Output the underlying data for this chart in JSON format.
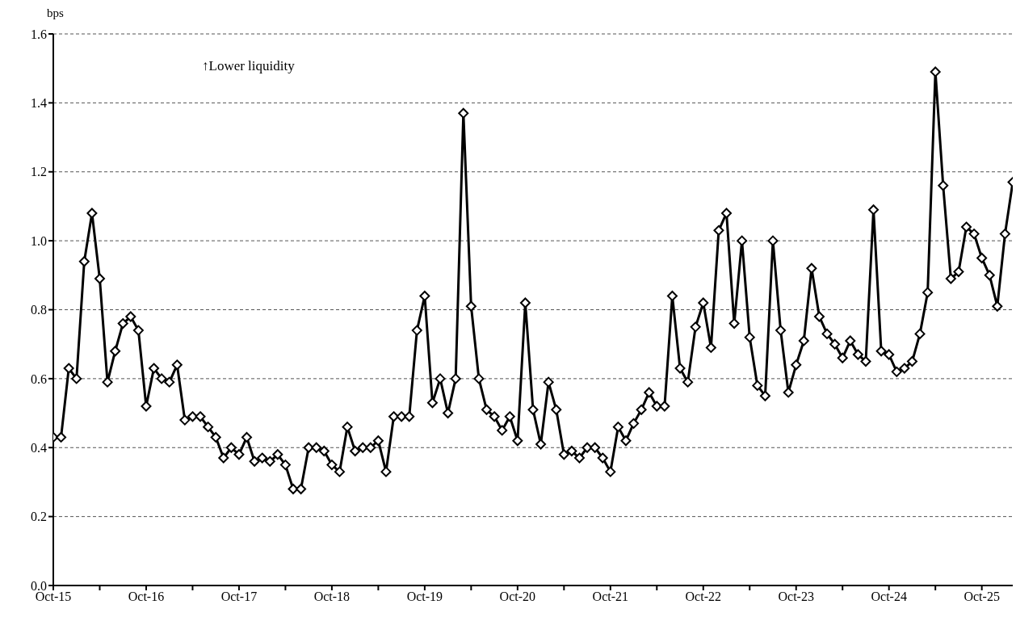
{
  "chart_data": {
    "type": "line",
    "ylabel": "bps",
    "annotations": [
      "↑Lower liquidity"
    ],
    "xlim": [
      "2015-10",
      "2026-02"
    ],
    "xticks": [
      {
        "value": "2015-10",
        "label": "Oct-15"
      },
      {
        "value": "2016-04",
        "label": null
      },
      {
        "value": "2016-10",
        "label": "Oct-16"
      },
      {
        "value": "2017-04",
        "label": null
      },
      {
        "value": "2017-10",
        "label": "Oct-17"
      },
      {
        "value": "2018-04",
        "label": null
      },
      {
        "value": "2018-10",
        "label": "Oct-18"
      },
      {
        "value": "2019-04",
        "label": null
      },
      {
        "value": "2019-10",
        "label": "Oct-19"
      },
      {
        "value": "2020-04",
        "label": null
      },
      {
        "value": "2020-10",
        "label": "Oct-20"
      },
      {
        "value": "2021-04",
        "label": null
      },
      {
        "value": "2021-10",
        "label": "Oct-21"
      },
      {
        "value": "2022-04",
        "label": null
      },
      {
        "value": "2022-10",
        "label": "Oct-22"
      },
      {
        "value": "2023-04",
        "label": null
      },
      {
        "value": "2023-10",
        "label": "Oct-23"
      },
      {
        "value": "2024-04",
        "label": null
      },
      {
        "value": "2024-10",
        "label": "Oct-24"
      },
      {
        "value": "2025-04",
        "label": null
      },
      {
        "value": "2025-10",
        "label": "Oct-25"
      }
    ],
    "ylim": [
      0,
      1.6
    ],
    "yticks": [
      {
        "value": 0,
        "label": "0.0"
      },
      0.2,
      0.4,
      0.6,
      0.8,
      {
        "value": 1,
        "label": "1.0"
      },
      1.2,
      1.4,
      1.6
    ],
    "grid": "y",
    "marker": "diamond",
    "line_style": "solid",
    "x": [
      "2015-10",
      "2015-11",
      "2015-12",
      "2016-01",
      "2016-02",
      "2016-03",
      "2016-04",
      "2016-05",
      "2016-06",
      "2016-07",
      "2016-08",
      "2016-09",
      "2016-10",
      "2016-11",
      "2016-12",
      "2017-01",
      "2017-02",
      "2017-03",
      "2017-04",
      "2017-05",
      "2017-06",
      "2017-07",
      "2017-08",
      "2017-09",
      "2017-10",
      "2017-11",
      "2017-12",
      "2018-01",
      "2018-02",
      "2018-03",
      "2018-04",
      "2018-05",
      "2018-06",
      "2018-07",
      "2018-08",
      "2018-09",
      "2018-10",
      "2018-11",
      "2018-12",
      "2019-01",
      "2019-02",
      "2019-03",
      "2019-04",
      "2019-05",
      "2019-06",
      "2019-07",
      "2019-08",
      "2019-09",
      "2019-10",
      "2019-11",
      "2019-12",
      "2020-01",
      "2020-02",
      "2020-03",
      "2020-04",
      "2020-05",
      "2020-06",
      "2020-07",
      "2020-08",
      "2020-09",
      "2020-10",
      "2020-11",
      "2020-12",
      "2021-01",
      "2021-02",
      "2021-03",
      "2021-04",
      "2021-05",
      "2021-06",
      "2021-07",
      "2021-08",
      "2021-09",
      "2021-10",
      "2021-11",
      "2021-12",
      "2022-01",
      "2022-02",
      "2022-03",
      "2022-04",
      "2022-05",
      "2022-06",
      "2022-07",
      "2022-08",
      "2022-09",
      "2022-10",
      "2022-11",
      "2022-12",
      "2023-01",
      "2023-02",
      "2023-03",
      "2023-04",
      "2023-05",
      "2023-06",
      "2023-07",
      "2023-08",
      "2023-09",
      "2023-10",
      "2023-11",
      "2023-12",
      "2024-01",
      "2024-02",
      "2024-03",
      "2024-04",
      "2024-05",
      "2024-06",
      "2024-07",
      "2024-08",
      "2024-09",
      "2024-10",
      "2024-11",
      "2024-12",
      "2025-01",
      "2025-02",
      "2025-03",
      "2025-04",
      "2025-05",
      "2025-06",
      "2025-07",
      "2025-08",
      "2025-09",
      "2025-10",
      "2025-11",
      "2025-12",
      "2026-01",
      "2026-02"
    ],
    "series": [
      {
        "color": "#000000",
        "values": [
          0.43,
          0.43,
          0.63,
          0.6,
          0.94,
          1.08,
          0.89,
          0.59,
          0.68,
          0.76,
          0.78,
          0.74,
          0.52,
          0.63,
          0.6,
          0.59,
          0.64,
          0.48,
          0.49,
          0.49,
          0.46,
          0.43,
          0.37,
          0.4,
          0.38,
          0.43,
          0.36,
          0.37,
          0.36,
          0.38,
          0.35,
          0.28,
          0.28,
          0.4,
          0.4,
          0.39,
          0.35,
          0.33,
          0.46,
          0.39,
          0.4,
          0.4,
          0.42,
          0.33,
          0.49,
          0.49,
          0.49,
          0.74,
          0.84,
          0.53,
          0.6,
          0.5,
          0.6,
          1.37,
          0.81,
          0.6,
          0.51,
          0.49,
          0.45,
          0.49,
          0.42,
          0.82,
          0.51,
          0.41,
          0.59,
          0.51,
          0.38,
          0.39,
          0.37,
          0.4,
          0.4,
          0.37,
          0.33,
          0.46,
          0.42,
          0.47,
          0.51,
          0.56,
          0.52,
          0.52,
          0.84,
          0.63,
          0.59,
          0.75,
          0.82,
          0.69,
          1.03,
          1.08,
          0.76,
          1.0,
          0.72,
          0.58,
          0.55,
          1.0,
          0.74,
          0.56,
          0.64,
          0.71,
          0.92,
          0.78,
          0.73,
          0.7,
          0.66,
          0.71,
          0.67,
          0.65,
          1.09,
          0.68,
          0.67,
          0.62,
          0.63,
          0.65,
          0.73,
          0.85,
          1.49,
          1.16,
          0.89,
          0.91,
          1.04,
          1.02,
          0.95,
          0.9,
          0.81,
          1.02,
          1.17
        ]
      }
    ]
  }
}
